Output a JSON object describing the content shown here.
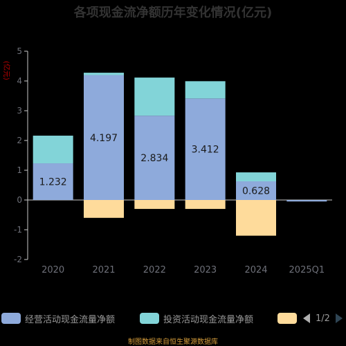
{
  "page": {
    "title": "各项现金流净额历年变化情况(亿元)",
    "source": "制图数据来自恒生聚源数据库",
    "unit_label": "(亿元)"
  },
  "legend": {
    "items": [
      {
        "label": "经营活动现金流量净额",
        "color": "#8eaadb"
      },
      {
        "label": "投资活动现金流量净额",
        "color": "#82d4d8"
      },
      {
        "label": "",
        "color": "#fedb9b"
      }
    ],
    "pager_text": "1/2",
    "prev_icon": "triangle-left-icon",
    "next_icon": "triangle-right-icon"
  },
  "chart_data": {
    "type": "bar",
    "stacked": true,
    "categories": [
      "2020",
      "2021",
      "2022",
      "2023",
      "2024",
      "2025Q1"
    ],
    "ylim": [
      -2,
      5
    ],
    "yticks": [
      5,
      4,
      3,
      2,
      1,
      0,
      -1,
      -2
    ],
    "series": [
      {
        "name": "经营活动现金流量净额",
        "color": "#8eaadb",
        "values": [
          1.232,
          4.197,
          2.834,
          3.412,
          0.628,
          -0.05
        ]
      },
      {
        "name": "投资活动现金流量净额",
        "color": "#82d4d8",
        "values": [
          0.93,
          0.08,
          1.28,
          0.58,
          0.3,
          0.0
        ]
      },
      {
        "name": "",
        "color": "#fedb9b",
        "values": [
          0.0,
          -0.6,
          -0.3,
          -0.3,
          -1.2,
          0.0
        ]
      }
    ],
    "data_labels": [
      "1.232",
      "4.197",
      "2.834",
      "3.412",
      "0.628",
      ""
    ],
    "grid": false
  }
}
